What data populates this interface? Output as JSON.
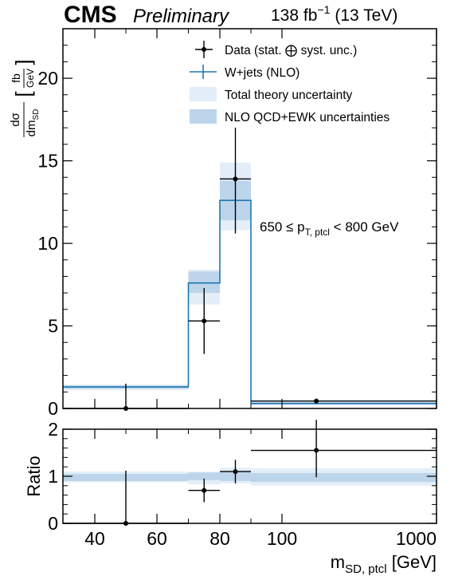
{
  "header": {
    "experiment": "CMS",
    "status": "Preliminary",
    "lumi_value": "138 fb",
    "lumi_exponent": "−1",
    "energy": "(13 TeV)"
  },
  "colors": {
    "prediction_line": "#1f77b4",
    "total_theory_band": "#e3eef8",
    "qcd_ewk_band": "#bcd5ea",
    "data": "#000000"
  },
  "chart_data": [
    {
      "type": "line",
      "title": "",
      "ylabel": {
        "main": "dσ",
        "denominator": "dm",
        "denominator_sub": "SD",
        "unit_num": "fb",
        "unit_den": "GeV"
      },
      "xlabel": "",
      "ylim": [
        0,
        23
      ],
      "yticks": [
        "0",
        "5",
        "10",
        "15",
        "20"
      ],
      "annotation": {
        "pre": "650 ≤ p",
        "sub": "T, ptcl",
        "post": " < 800 GeV"
      },
      "legend": {
        "placement": "top-right",
        "entries": [
          {
            "label": "Data (stat. ⨁ syst. unc.)",
            "kind": "data"
          },
          {
            "label": "W+jets (NLO)",
            "kind": "line"
          },
          {
            "label": "Total theory uncertainty",
            "kind": "band_total"
          },
          {
            "label": "NLO QCD+EWK uncertainties",
            "kind": "band_qcd"
          }
        ]
      },
      "bins": [
        {
          "low": 30,
          "high": 70,
          "pred": 1.3,
          "total_lo": 1.1,
          "total_hi": 1.45,
          "qcd_lo": 1.2,
          "qcd_hi": 1.4
        },
        {
          "low": 70,
          "high": 80,
          "pred": 7.6,
          "total_lo": 6.3,
          "total_hi": 8.4,
          "qcd_lo": 7.0,
          "qcd_hi": 8.3
        },
        {
          "low": 80,
          "high": 90,
          "pred": 12.6,
          "total_lo": 10.8,
          "total_hi": 14.9,
          "qcd_lo": 11.4,
          "qcd_hi": 13.8
        },
        {
          "low": 90,
          "high": 1000,
          "pred": 0.3,
          "total_lo": 0.22,
          "total_hi": 0.45,
          "qcd_lo": 0.25,
          "qcd_hi": 0.38
        }
      ],
      "data_points": [
        {
          "x": 50,
          "xerr": [
            30,
            70
          ],
          "y": 0.0,
          "yerr": [
            0.0,
            1.5
          ]
        },
        {
          "x": 75,
          "xerr": [
            70,
            80
          ],
          "y": 5.3,
          "yerr": [
            3.3,
            7.3
          ]
        },
        {
          "x": 85,
          "xerr": [
            80,
            90
          ],
          "y": 13.9,
          "yerr": [
            10.6,
            17.0
          ]
        },
        {
          "x": 300,
          "xerr": [
            90,
            1000
          ],
          "y": 0.45,
          "yerr": [
            0.3,
            0.55
          ]
        }
      ]
    },
    {
      "type": "line",
      "title": "",
      "ylabel": "Ratio",
      "xlabel": {
        "main": "m",
        "sub": "SD, ptcl",
        "unit": " [GeV]"
      },
      "ylim": [
        0,
        2
      ],
      "yticks": [
        "0",
        "1",
        "2"
      ],
      "xticks": [
        "40",
        "60",
        "80",
        "100",
        "1000"
      ],
      "bins": [
        {
          "low": 30,
          "high": 70,
          "total_lo": 0.87,
          "total_hi": 1.1,
          "qcd_lo": 0.9,
          "qcd_hi": 1.05
        },
        {
          "low": 70,
          "high": 80,
          "total_lo": 0.83,
          "total_hi": 1.1,
          "qcd_lo": 0.92,
          "qcd_hi": 1.08
        },
        {
          "low": 80,
          "high": 90,
          "total_lo": 0.85,
          "total_hi": 1.18,
          "qcd_lo": 0.9,
          "qcd_hi": 1.1
        },
        {
          "low": 90,
          "high": 1000,
          "total_lo": 0.8,
          "total_hi": 1.17,
          "qcd_lo": 0.88,
          "qcd_hi": 1.07
        }
      ],
      "data_points": [
        {
          "x": 50,
          "xerr": [
            30,
            70
          ],
          "y": 0.0,
          "yerr": [
            0.0,
            1.12
          ]
        },
        {
          "x": 75,
          "xerr": [
            70,
            80
          ],
          "y": 0.7,
          "yerr": [
            0.45,
            0.95
          ]
        },
        {
          "x": 85,
          "xerr": [
            80,
            90
          ],
          "y": 1.1,
          "yerr": [
            0.85,
            1.35
          ]
        },
        {
          "x": 300,
          "xerr": [
            90,
            1000
          ],
          "y": 1.55,
          "yerr": [
            0.98,
            2.2
          ]
        }
      ]
    }
  ]
}
